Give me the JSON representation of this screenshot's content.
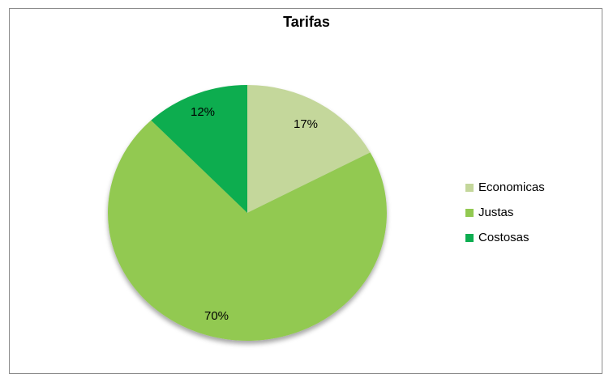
{
  "chart_data": {
    "type": "pie",
    "title": "Tarifas",
    "categories": [
      "Economicas",
      "Justas",
      "Costosas"
    ],
    "values": [
      17,
      70,
      12
    ],
    "labels": [
      "17%",
      "70%",
      "12%"
    ],
    "colors": [
      "#c4d79b",
      "#92c951",
      "#0dad50"
    ],
    "legend_position": "right"
  }
}
